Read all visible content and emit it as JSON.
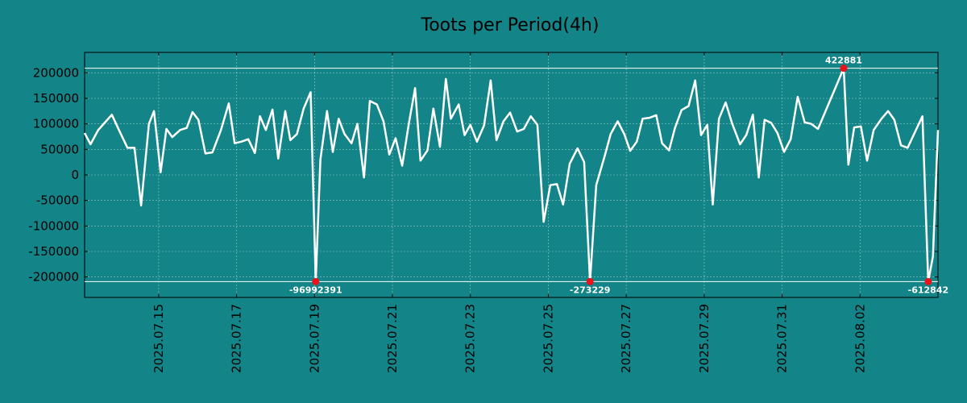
{
  "chart_data": {
    "type": "line",
    "title": "Toots per Period(4h)",
    "xlabel": "",
    "ylabel": "",
    "x_tick_labels": [
      "2025.07.15",
      "2025.07.17",
      "2025.07.19",
      "2025.07.21",
      "2025.07.23",
      "2025.07.25",
      "2025.07.27",
      "2025.07.29",
      "2025.07.31",
      "2025.08.02"
    ],
    "y_tick_labels": [
      "200000",
      "150000",
      "100000",
      "50000",
      "0",
      "-50000",
      "-100000",
      "-150000",
      "-200000"
    ],
    "y_ticks": [
      200000,
      150000,
      100000,
      50000,
      0,
      -50000,
      -100000,
      -150000,
      -200000
    ],
    "xlim_days": [
      13.1,
      35.0
    ],
    "ylim": [
      -240000,
      240000
    ],
    "clip_limits": [
      209000,
      -209000
    ],
    "grid": true,
    "x_start_date": "2025.07.13",
    "series": [
      {
        "values": [
          [
            13.1,
            82000
          ],
          [
            13.25,
            60000
          ],
          [
            13.45,
            88000
          ],
          [
            13.8,
            118000
          ],
          [
            14.0,
            85000
          ],
          [
            14.2,
            53000
          ],
          [
            14.38,
            53000
          ],
          [
            14.55,
            -60000
          ],
          [
            14.75,
            100000
          ],
          [
            14.88,
            125000
          ],
          [
            15.05,
            5000
          ],
          [
            15.2,
            90000
          ],
          [
            15.35,
            74000
          ],
          [
            15.55,
            88000
          ],
          [
            15.72,
            92000
          ],
          [
            15.87,
            123000
          ],
          [
            16.02,
            108000
          ],
          [
            16.2,
            42000
          ],
          [
            16.38,
            44000
          ],
          [
            16.6,
            88000
          ],
          [
            16.8,
            140000
          ],
          [
            16.95,
            62000
          ],
          [
            17.12,
            65000
          ],
          [
            17.3,
            70000
          ],
          [
            17.47,
            43000
          ],
          [
            17.6,
            115000
          ],
          [
            17.75,
            88000
          ],
          [
            17.92,
            128000
          ],
          [
            18.07,
            32000
          ],
          [
            18.25,
            125000
          ],
          [
            18.38,
            68000
          ],
          [
            18.55,
            80000
          ],
          [
            18.72,
            130000
          ],
          [
            18.9,
            162000
          ],
          [
            19.03,
            -209000
          ],
          [
            19.15,
            30000
          ],
          [
            19.32,
            125000
          ],
          [
            19.47,
            45000
          ],
          [
            19.62,
            110000
          ],
          [
            19.77,
            80000
          ],
          [
            19.95,
            62000
          ],
          [
            20.1,
            100000
          ],
          [
            20.27,
            -5000
          ],
          [
            20.42,
            145000
          ],
          [
            20.6,
            138000
          ],
          [
            20.77,
            105000
          ],
          [
            20.92,
            40000
          ],
          [
            21.08,
            72000
          ],
          [
            21.25,
            18000
          ],
          [
            21.42,
            100000
          ],
          [
            21.58,
            170000
          ],
          [
            21.72,
            28000
          ],
          [
            21.9,
            48000
          ],
          [
            22.05,
            130000
          ],
          [
            22.22,
            55000
          ],
          [
            22.37,
            188000
          ],
          [
            22.5,
            110000
          ],
          [
            22.7,
            138000
          ],
          [
            22.85,
            78000
          ],
          [
            23.0,
            98000
          ],
          [
            23.17,
            65000
          ],
          [
            23.35,
            97000
          ],
          [
            23.52,
            185000
          ],
          [
            23.67,
            68000
          ],
          [
            23.85,
            105000
          ],
          [
            24.02,
            122000
          ],
          [
            24.2,
            85000
          ],
          [
            24.37,
            90000
          ],
          [
            24.55,
            115000
          ],
          [
            24.72,
            98000
          ],
          [
            24.88,
            -92000
          ],
          [
            25.05,
            -20000
          ],
          [
            25.22,
            -18000
          ],
          [
            25.38,
            -58000
          ],
          [
            25.55,
            22000
          ],
          [
            25.75,
            52000
          ],
          [
            25.92,
            25000
          ],
          [
            26.07,
            -209000
          ],
          [
            26.23,
            -20000
          ],
          [
            26.45,
            38000
          ],
          [
            26.6,
            80000
          ],
          [
            26.78,
            105000
          ],
          [
            26.95,
            80000
          ],
          [
            27.1,
            47000
          ],
          [
            27.27,
            65000
          ],
          [
            27.42,
            110000
          ],
          [
            27.6,
            112000
          ],
          [
            27.77,
            117000
          ],
          [
            27.92,
            62000
          ],
          [
            28.1,
            48000
          ],
          [
            28.25,
            92000
          ],
          [
            28.42,
            127000
          ],
          [
            28.6,
            135000
          ],
          [
            28.77,
            185000
          ],
          [
            28.92,
            78000
          ],
          [
            29.08,
            98000
          ],
          [
            29.22,
            -58000
          ],
          [
            29.38,
            110000
          ],
          [
            29.55,
            142000
          ],
          [
            29.72,
            100000
          ],
          [
            29.92,
            60000
          ],
          [
            30.08,
            78000
          ],
          [
            30.25,
            118000
          ],
          [
            30.4,
            -5000
          ],
          [
            30.55,
            108000
          ],
          [
            30.72,
            102000
          ],
          [
            30.88,
            82000
          ],
          [
            31.05,
            45000
          ],
          [
            31.22,
            70000
          ],
          [
            31.4,
            153000
          ],
          [
            31.58,
            103000
          ],
          [
            31.75,
            100000
          ],
          [
            31.92,
            90000
          ],
          [
            32.58,
            209000
          ],
          [
            32.7,
            20000
          ],
          [
            32.85,
            93000
          ],
          [
            33.02,
            95000
          ],
          [
            33.18,
            28000
          ],
          [
            33.35,
            88000
          ],
          [
            33.55,
            110000
          ],
          [
            33.72,
            125000
          ],
          [
            33.88,
            108000
          ],
          [
            34.05,
            58000
          ],
          [
            34.22,
            53000
          ],
          [
            34.6,
            115000
          ],
          [
            34.75,
            -209000
          ],
          [
            34.87,
            -160000
          ],
          [
            35.0,
            88000
          ]
        ]
      }
    ],
    "annotations": [
      {
        "x": 19.03,
        "y": -209000,
        "text": "-96992391",
        "position": "below"
      },
      {
        "x": 26.07,
        "y": -209000,
        "text": "-273229",
        "position": "below"
      },
      {
        "x": 32.58,
        "y": 209000,
        "text": "422881",
        "position": "above"
      },
      {
        "x": 34.75,
        "y": -209000,
        "text": "-612842",
        "position": "below"
      }
    ],
    "colors": {
      "background": "#138487",
      "line": "#ffffff",
      "marker": "#e8131b",
      "text": "#000000",
      "annotation_text": "#ffffff"
    }
  }
}
